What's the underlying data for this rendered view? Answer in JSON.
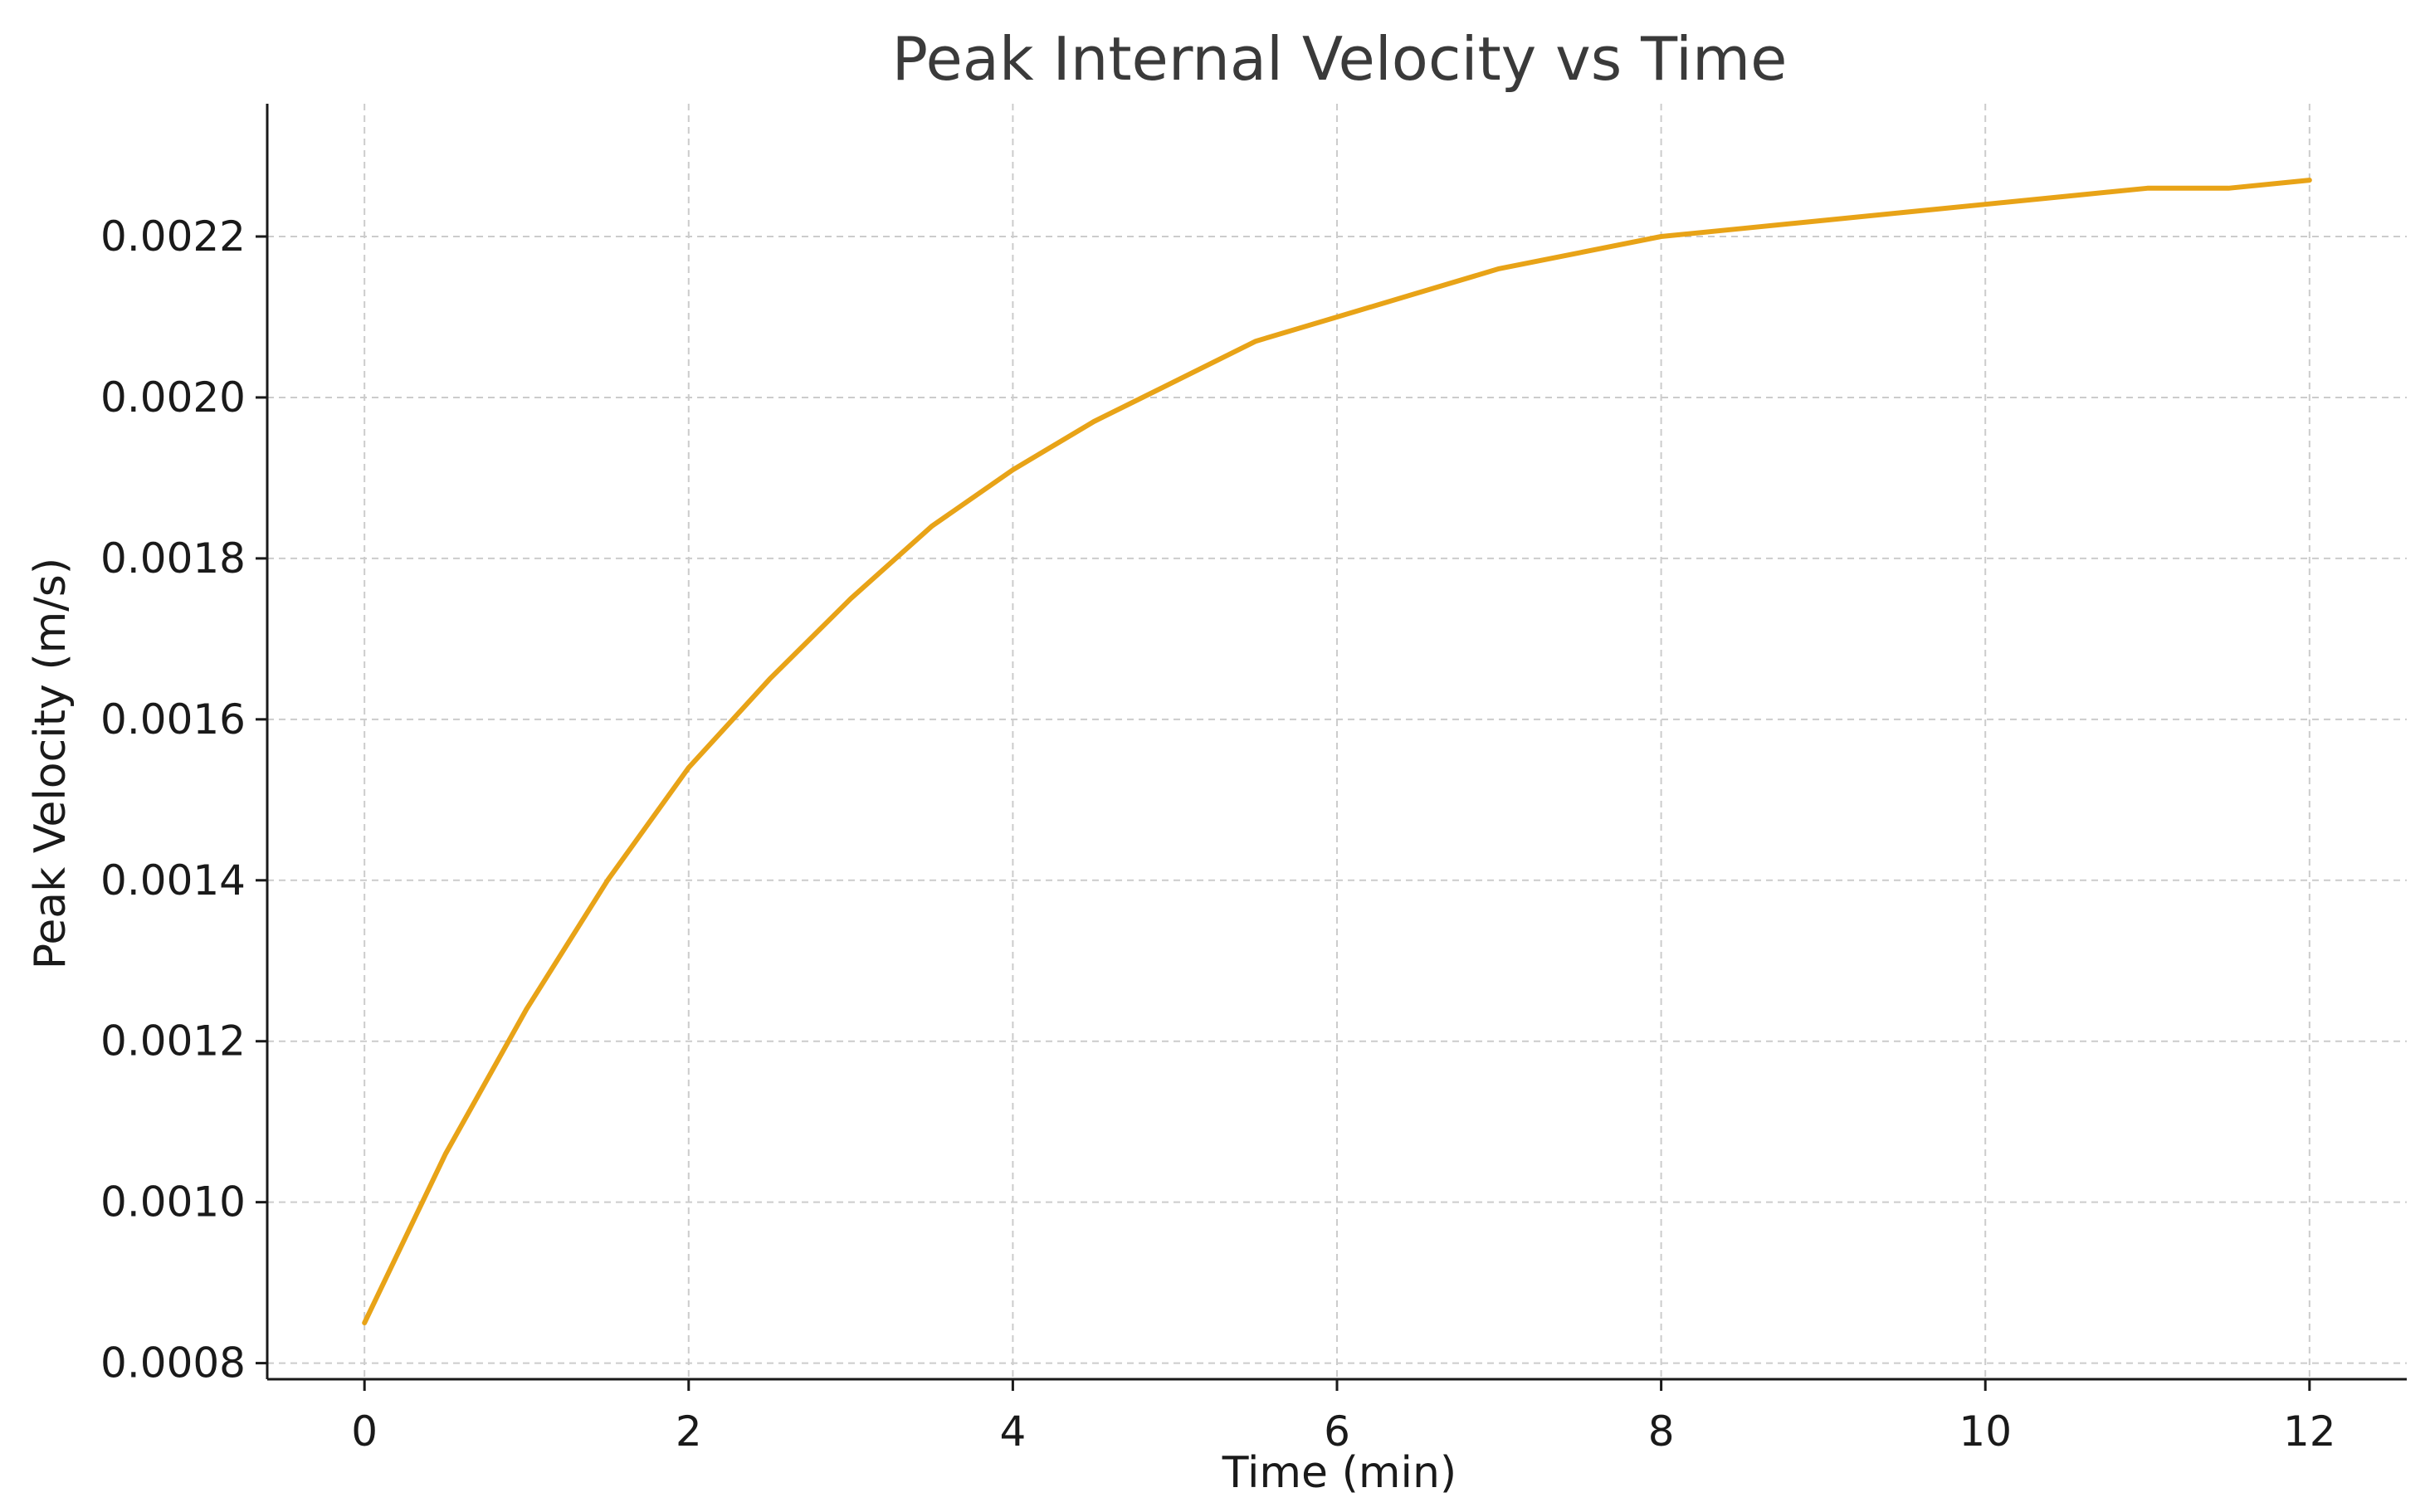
{
  "chart_data": {
    "type": "line",
    "title": "Peak Internal Velocity vs Time",
    "xlabel": "Time (min)",
    "ylabel": "Peak Velocity (m/s)",
    "xlim": [
      -0.6,
      12.6
    ],
    "ylim": [
      0.00078,
      0.002365
    ],
    "x_ticks": [
      0,
      2,
      4,
      6,
      8,
      10,
      12
    ],
    "x_tick_labels": [
      "0",
      "2",
      "4",
      "6",
      "8",
      "10",
      "12"
    ],
    "y_ticks": [
      0.0008,
      0.001,
      0.0012,
      0.0014,
      0.0016,
      0.0018,
      0.002,
      0.0022
    ],
    "y_tick_labels": [
      "0.0008",
      "0.0010",
      "0.0012",
      "0.0014",
      "0.0016",
      "0.0018",
      "0.0020",
      "0.0022"
    ],
    "grid": true,
    "series": [
      {
        "name": "Peak Velocity",
        "color": "#e8a317",
        "x": [
          0,
          0.5,
          1,
          1.5,
          2,
          2.5,
          3,
          3.5,
          4,
          4.5,
          5,
          5.5,
          6,
          6.5,
          7,
          7.5,
          8,
          8.5,
          9,
          9.5,
          10,
          10.5,
          11,
          11.5,
          12
        ],
        "y": [
          0.00085,
          0.00106,
          0.00124,
          0.0014,
          0.00154,
          0.00165,
          0.00175,
          0.00184,
          0.00191,
          0.00197,
          0.00202,
          0.00207,
          0.0021,
          0.00213,
          0.00216,
          0.00218,
          0.0022,
          0.00221,
          0.00222,
          0.00223,
          0.00224,
          0.00225,
          0.00226,
          0.00226,
          0.00227
        ]
      }
    ]
  }
}
